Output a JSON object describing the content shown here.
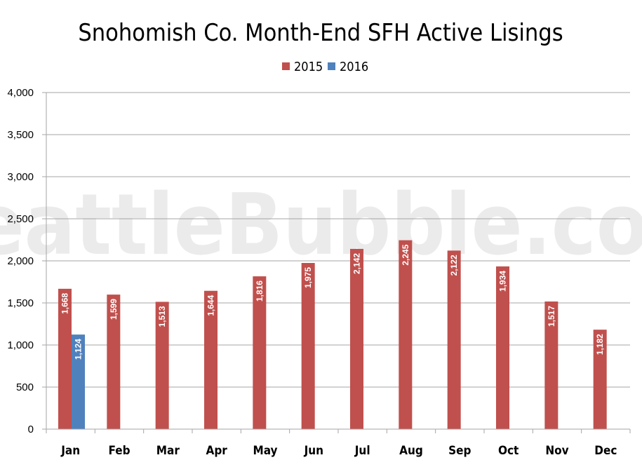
{
  "chart_data": {
    "type": "bar",
    "title": "Snohomish Co. Month-End SFH Active Lisings",
    "watermark": "SeattleBubble.com",
    "categories": [
      "Jan",
      "Feb",
      "Mar",
      "Apr",
      "May",
      "Jun",
      "Jul",
      "Aug",
      "Sep",
      "Oct",
      "Nov",
      "Dec"
    ],
    "series": [
      {
        "name": "2015",
        "color": "#c0504d",
        "values": [
          1668,
          1599,
          1513,
          1644,
          1816,
          1975,
          2142,
          2245,
          2122,
          1934,
          1517,
          1182
        ],
        "labels": [
          "1,668",
          "1,599",
          "1,513",
          "1,644",
          "1,816",
          "1,975",
          "2,142",
          "2,245",
          "2,122",
          "1,934",
          "1,517",
          "1,182"
        ]
      },
      {
        "name": "2016",
        "color": "#4f81bd",
        "values": [
          1124,
          null,
          null,
          null,
          null,
          null,
          null,
          null,
          null,
          null,
          null,
          null
        ],
        "labels": [
          "1,124",
          "",
          "",
          "",
          "",
          "",
          "",
          "",
          "",
          "",
          "",
          ""
        ]
      }
    ],
    "ylim": [
      0,
      4000
    ],
    "yticks": [
      0,
      500,
      1000,
      1500,
      2000,
      2500,
      3000,
      3500,
      4000
    ],
    "yticklabels": [
      "0",
      "500",
      "1,000",
      "1,500",
      "2,000",
      "2,500",
      "3,000",
      "3,500",
      "4,000"
    ],
    "grid": true,
    "legend": "top-center",
    "xlabel": "",
    "ylabel": ""
  }
}
